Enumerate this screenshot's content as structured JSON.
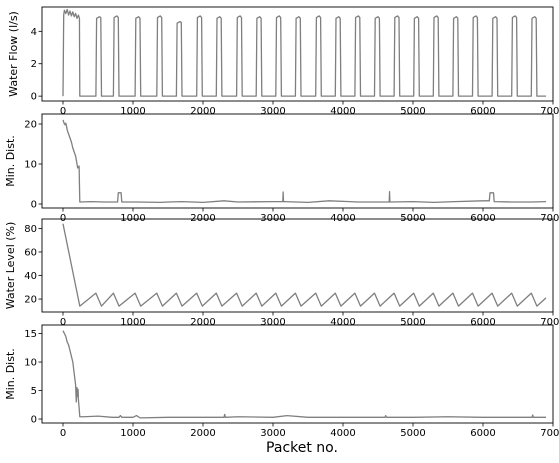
{
  "figure": {
    "xlabel": "Packet no."
  },
  "colors": {
    "series": "#7f7f7f",
    "axes": "#000000",
    "background": "#ffffff"
  },
  "chart_data": [
    {
      "id": "water-flow",
      "type": "line",
      "ylabel": "Water Flow (l/s)",
      "xlim": [
        -300,
        7000
      ],
      "ylim": [
        -0.3,
        5.5
      ],
      "xticks": [
        0,
        1000,
        2000,
        3000,
        4000,
        5000,
        6000,
        7000
      ],
      "xtick_labels": [
        "0",
        "1000",
        "2000",
        "3000",
        "4000",
        "5000",
        "6000",
        "7000"
      ],
      "yticks": [
        0,
        2,
        4
      ],
      "ytick_labels": [
        "0",
        "2",
        "4"
      ],
      "grid": false,
      "series": [
        {
          "x": [
            0,
            10,
            20,
            40,
            60,
            80,
            100,
            120,
            140,
            160,
            180,
            200,
            220,
            235,
            240,
            470,
            480,
            500,
            520,
            540,
            550,
            720,
            730,
            750,
            770,
            790,
            800,
            1030,
            1040,
            1060,
            1080,
            1100,
            1110,
            1340,
            1350,
            1370,
            1390,
            1410,
            1420,
            1620,
            1630,
            1650,
            1670,
            1690,
            1700,
            1910,
            1920,
            1940,
            1960,
            1980,
            1990,
            2190,
            2200,
            2220,
            2240,
            2260,
            2270,
            2480,
            2490,
            2510,
            2530,
            2550,
            2560,
            2760,
            2770,
            2790,
            2810,
            2830,
            2840,
            3040,
            3050,
            3070,
            3090,
            3110,
            3120,
            3320,
            3330,
            3350,
            3370,
            3390,
            3400,
            3610,
            3620,
            3640,
            3660,
            3680,
            3690,
            3890,
            3900,
            3920,
            3940,
            3960,
            3970,
            4170,
            4180,
            4200,
            4220,
            4240,
            4250,
            4450,
            4460,
            4480,
            4500,
            4520,
            4530,
            4730,
            4740,
            4760,
            4780,
            4800,
            4810,
            5010,
            5020,
            5040,
            5060,
            5080,
            5090,
            5290,
            5300,
            5320,
            5340,
            5360,
            5370,
            5570,
            5580,
            5600,
            5620,
            5640,
            5650,
            5850,
            5860,
            5880,
            5900,
            5920,
            5930,
            6130,
            6140,
            6160,
            6180,
            6200,
            6210,
            6410,
            6420,
            6440,
            6460,
            6480,
            6490,
            6690,
            6700,
            6720,
            6740,
            6760,
            6770,
            6900
          ],
          "y": [
            0,
            5.0,
            5.3,
            5.1,
            5.35,
            5.0,
            5.25,
            4.95,
            5.2,
            4.9,
            5.1,
            4.8,
            5.0,
            4.8,
            0,
            0,
            4.8,
            4.85,
            4.9,
            4.85,
            0,
            0,
            4.85,
            4.9,
            4.95,
            4.85,
            0,
            0,
            4.8,
            4.85,
            4.9,
            4.8,
            0,
            0,
            4.85,
            4.9,
            4.95,
            4.85,
            0,
            0,
            4.5,
            4.55,
            4.6,
            4.55,
            0,
            0,
            4.85,
            4.9,
            4.95,
            4.85,
            0,
            0,
            4.8,
            4.85,
            4.9,
            4.8,
            0,
            0,
            4.85,
            4.9,
            4.95,
            4.85,
            0,
            0,
            4.8,
            4.85,
            4.9,
            4.8,
            0,
            0,
            4.85,
            4.9,
            4.95,
            4.85,
            0,
            0,
            4.8,
            4.85,
            4.9,
            4.8,
            0,
            0,
            4.85,
            4.9,
            4.95,
            4.85,
            0,
            0,
            4.8,
            4.85,
            4.9,
            4.8,
            0,
            0,
            4.85,
            4.9,
            4.95,
            4.85,
            0,
            0,
            4.8,
            4.85,
            4.9,
            4.8,
            0,
            0,
            4.85,
            4.9,
            4.95,
            4.85,
            0,
            0,
            4.8,
            4.85,
            4.9,
            4.8,
            0,
            0,
            4.85,
            4.9,
            4.95,
            4.85,
            0,
            0,
            4.8,
            4.85,
            4.9,
            4.8,
            0,
            0,
            4.85,
            4.9,
            4.95,
            4.85,
            0,
            0,
            4.8,
            4.85,
            4.9,
            4.8,
            0,
            0,
            4.85,
            4.9,
            4.95,
            4.85,
            0,
            0,
            4.8,
            4.85,
            4.9,
            4.8,
            0,
            0
          ]
        }
      ]
    },
    {
      "id": "min-dist-1",
      "type": "line",
      "ylabel": "Min. Dist.",
      "xlim": [
        -300,
        7000
      ],
      "ylim": [
        -1,
        22.5
      ],
      "xticks": [
        0,
        1000,
        2000,
        3000,
        4000,
        5000,
        6000,
        7000
      ],
      "xtick_labels": [
        "0",
        "1000",
        "2000",
        "3000",
        "4000",
        "5000",
        "6000",
        "7000"
      ],
      "yticks": [
        0,
        10,
        20
      ],
      "ytick_labels": [
        "0",
        "10",
        "20"
      ],
      "grid": false,
      "series": [
        {
          "x": [
            0,
            10,
            20,
            30,
            40,
            50,
            60,
            70,
            80,
            100,
            120,
            140,
            160,
            180,
            200,
            210,
            220,
            230,
            240,
            250,
            400,
            600,
            780,
            790,
            830,
            840,
            1000,
            1050,
            1400,
            1500,
            1700,
            2000,
            2300,
            2500,
            3000,
            3140,
            3145,
            3150,
            3160,
            3500,
            3800,
            4100,
            4200,
            4400,
            4600,
            4660,
            4665,
            4670,
            4680,
            5000,
            5300,
            5600,
            6000,
            6090,
            6100,
            6150,
            6160,
            6400,
            6700,
            6900
          ],
          "y": [
            21,
            20.5,
            20,
            19.8,
            20.2,
            19.5,
            18.5,
            18,
            17.5,
            16.5,
            15.5,
            14,
            13,
            12,
            10,
            9,
            9.2,
            9.5,
            0.5,
            0.5,
            0.6,
            0.5,
            0.5,
            2.8,
            2.8,
            0.5,
            0.5,
            0.5,
            0.4,
            0.5,
            0.6,
            0.4,
            0.8,
            0.5,
            0.6,
            0.6,
            3.0,
            0.6,
            0.6,
            0.4,
            0.8,
            0.6,
            0.5,
            0.5,
            0.5,
            0.5,
            3.1,
            0.5,
            0.5,
            0.6,
            0.4,
            0.6,
            0.8,
            0.8,
            2.8,
            2.8,
            0.6,
            0.5,
            0.5,
            0.6
          ]
        }
      ]
    },
    {
      "id": "water-level",
      "type": "line",
      "ylabel": "Water Level (%)",
      "xlim": [
        -300,
        7000
      ],
      "ylim": [
        9,
        88
      ],
      "xticks": [
        0,
        1000,
        2000,
        3000,
        4000,
        5000,
        6000,
        7000
      ],
      "xtick_labels": [
        "0",
        "1000",
        "2000",
        "3000",
        "4000",
        "5000",
        "6000",
        "7000"
      ],
      "yticks": [
        20,
        40,
        60,
        80
      ],
      "ytick_labels": [
        "20",
        "40",
        "60",
        "80"
      ],
      "grid": false,
      "series": [
        {
          "x": [
            0,
            240,
            470,
            550,
            720,
            800,
            1030,
            1110,
            1340,
            1420,
            1620,
            1700,
            1910,
            1990,
            2190,
            2270,
            2480,
            2560,
            2760,
            2840,
            3040,
            3120,
            3320,
            3400,
            3610,
            3690,
            3890,
            3970,
            4170,
            4250,
            4450,
            4530,
            4730,
            4810,
            5010,
            5090,
            5290,
            5370,
            5570,
            5650,
            5850,
            5930,
            6130,
            6210,
            6410,
            6490,
            6690,
            6770,
            6900
          ],
          "y": [
            84,
            14,
            25,
            14,
            25,
            14,
            25,
            14,
            25,
            14,
            25,
            14,
            25,
            14,
            25,
            14,
            25,
            14,
            25,
            14,
            25,
            14,
            25,
            14,
            25,
            14,
            25,
            14,
            25,
            14,
            25,
            14,
            25,
            14,
            25,
            14,
            25,
            14,
            25,
            14,
            25,
            14,
            25,
            14,
            25,
            14,
            25,
            14,
            21
          ]
        }
      ]
    },
    {
      "id": "min-dist-2",
      "type": "line",
      "ylabel": "Min. Dist.",
      "xlim": [
        -300,
        7000
      ],
      "ylim": [
        -0.7,
        16.5
      ],
      "xticks": [
        0,
        1000,
        2000,
        3000,
        4000,
        5000,
        6000,
        7000
      ],
      "xtick_labels": [
        "0",
        "1000",
        "2000",
        "3000",
        "4000",
        "5000",
        "6000",
        "7000"
      ],
      "yticks": [
        0,
        5,
        10,
        15
      ],
      "ytick_labels": [
        "0",
        "5",
        "10",
        "15"
      ],
      "grid": false,
      "series": [
        {
          "x": [
            0,
            20,
            40,
            60,
            80,
            100,
            120,
            140,
            160,
            180,
            190,
            200,
            210,
            215,
            220,
            230,
            240,
            300,
            500,
            700,
            800,
            820,
            840,
            1000,
            1050,
            1100,
            1500,
            2000,
            2300,
            2310,
            2320,
            2500,
            3000,
            3200,
            3500,
            4000,
            4600,
            4610,
            4620,
            5000,
            5500,
            6000,
            6500,
            6700,
            6710,
            6720,
            6900
          ],
          "y": [
            15.5,
            15,
            14.5,
            13.5,
            13,
            12,
            11,
            10,
            8,
            6,
            3,
            5.5,
            4,
            5.2,
            3.5,
            2,
            0.4,
            0.4,
            0.5,
            0.3,
            0.3,
            0.6,
            0.3,
            0.3,
            0.6,
            0.2,
            0.3,
            0.3,
            0.3,
            0.8,
            0.3,
            0.4,
            0.3,
            0.6,
            0.3,
            0.3,
            0.3,
            0.6,
            0.3,
            0.3,
            0.4,
            0.3,
            0.3,
            0.3,
            0.7,
            0.3,
            0.3
          ]
        }
      ]
    }
  ]
}
